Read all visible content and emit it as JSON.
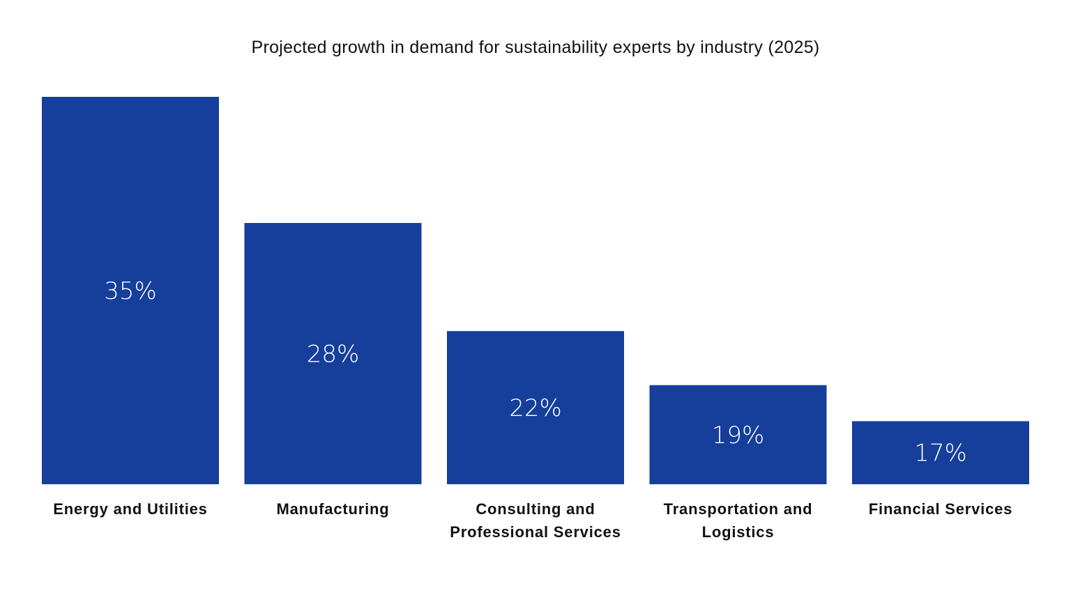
{
  "chart_data": {
    "type": "bar",
    "title": "Projected growth in demand for sustainability experts by industry (2025)",
    "categories": [
      "Energy and Utilities",
      "Manufacturing",
      "Consulting and Professional Services",
      "Transportation and Logistics",
      "Financial Services"
    ],
    "values": [
      35,
      28,
      22,
      19,
      17
    ],
    "data_labels": [
      "35%",
      "28%",
      "22%",
      "19%",
      "17%"
    ],
    "xlabel": "",
    "ylabel": "",
    "ylim": [
      13.5,
      35
    ],
    "grid": false,
    "legend": "none",
    "colors": {
      "bar": "#163e9b",
      "data_label": "#ffffff",
      "text": "#111111"
    }
  }
}
